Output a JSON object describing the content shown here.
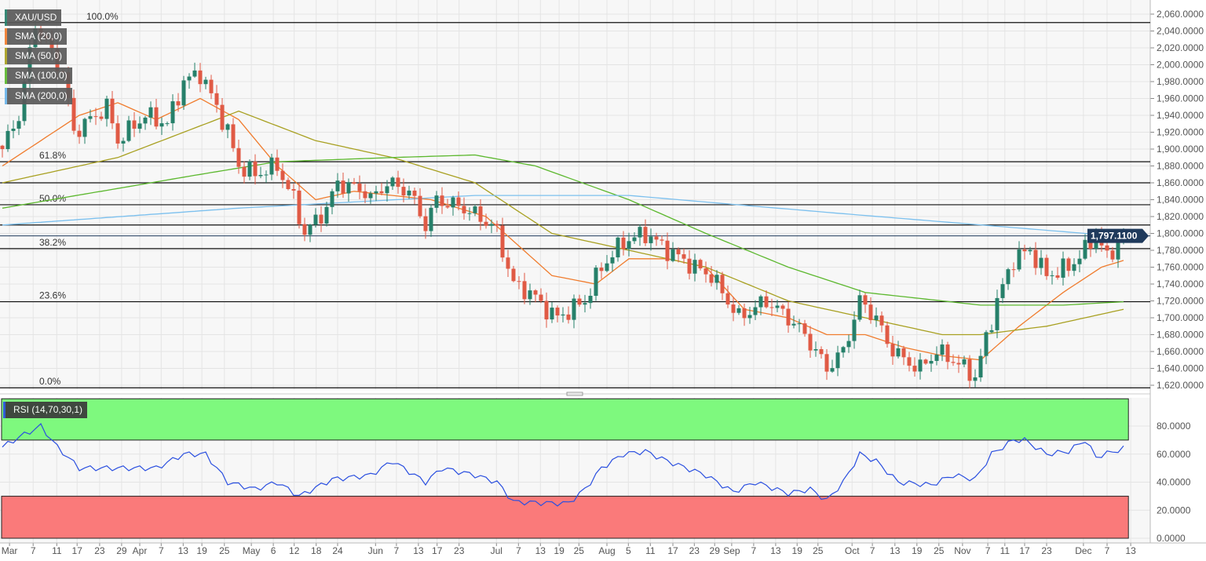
{
  "legend": [
    {
      "label": "XAU/USD",
      "color": "#26806a"
    },
    {
      "label": "SMA (20,0)",
      "color": "#f07c2e"
    },
    {
      "label": "SMA (50,0)",
      "color": "#a8a020"
    },
    {
      "label": "SMA (100,0)",
      "color": "#5cb82e"
    },
    {
      "label": "SMA (200,0)",
      "color": "#6ab4ea"
    }
  ],
  "rsi_label": "RSI (14,70,30,1)",
  "colors": {
    "up": "#26806a",
    "down": "#e05a45",
    "sma20": "#f07c2e",
    "sma50": "#a8a020",
    "sma100": "#5cb82e",
    "sma200": "#7cc0ee",
    "rsi": "#2a4fe0",
    "overbought": "#7ef97e",
    "oversold": "#fa7a7a",
    "price_badge": "#1f3a5c"
  },
  "chart_data": {
    "type": "candlestick",
    "symbol": "XAU/USD",
    "last_price": 1797.11,
    "last_price_label": "1,797.1100",
    "ylim": [
      1615,
      2070
    ],
    "yticks": [
      1620,
      1640,
      1660,
      1680,
      1700,
      1720,
      1740,
      1760,
      1780,
      1800,
      1820,
      1840,
      1860,
      1880,
      1900,
      1920,
      1940,
      1960,
      1980,
      2000,
      2020,
      2040,
      2060
    ],
    "ytick_labels": [
      "1,620.0000",
      "1,640.0000",
      "1,660.0000",
      "1,680.0000",
      "1,700.0000",
      "1,720.0000",
      "1,740.0000",
      "1,760.0000",
      "1,780.0000",
      "1,800.0000",
      "1,820.0000",
      "1,840.0000",
      "1,860.0000",
      "1,880.0000",
      "1,900.0000",
      "1,920.0000",
      "1,940.0000",
      "1,960.0000",
      "1,980.0000",
      "2,000.0000",
      "2,020.0000",
      "2,040.0000",
      "2,060.0000"
    ],
    "num_days": 205,
    "close_anchors": [
      [
        0,
        1900
      ],
      [
        3,
        1940
      ],
      [
        6,
        2050
      ],
      [
        11,
        1990
      ],
      [
        13,
        1920
      ],
      [
        19,
        1950
      ],
      [
        21,
        1910
      ],
      [
        26,
        1940
      ],
      [
        30,
        1930
      ],
      [
        33,
        1980
      ],
      [
        36,
        1990
      ],
      [
        39,
        1950
      ],
      [
        41,
        1920
      ],
      [
        43,
        1880
      ],
      [
        46,
        1870
      ],
      [
        50,
        1880
      ],
      [
        53,
        1840
      ],
      [
        55,
        1800
      ],
      [
        59,
        1830
      ],
      [
        61,
        1860
      ],
      [
        66,
        1850
      ],
      [
        67,
        1840
      ],
      [
        70,
        1860
      ],
      [
        74,
        1850
      ],
      [
        77,
        1810
      ],
      [
        79,
        1840
      ],
      [
        84,
        1830
      ],
      [
        89,
        1810
      ],
      [
        90,
        1800
      ],
      [
        93,
        1740
      ],
      [
        96,
        1730
      ],
      [
        99,
        1710
      ],
      [
        101,
        1700
      ],
      [
        106,
        1720
      ],
      [
        109,
        1760
      ],
      [
        113,
        1790
      ],
      [
        117,
        1800
      ],
      [
        121,
        1780
      ],
      [
        126,
        1760
      ],
      [
        129,
        1750
      ],
      [
        131,
        1730
      ],
      [
        134,
        1700
      ],
      [
        139,
        1720
      ],
      [
        143,
        1700
      ],
      [
        146,
        1680
      ],
      [
        150,
        1640
      ],
      [
        153,
        1660
      ],
      [
        156,
        1720
      ],
      [
        159,
        1700
      ],
      [
        161,
        1670
      ],
      [
        164,
        1650
      ],
      [
        167,
        1640
      ],
      [
        170,
        1660
      ],
      [
        173,
        1650
      ],
      [
        177,
        1630
      ],
      [
        181,
        1720
      ],
      [
        184,
        1770
      ],
      [
        187,
        1780
      ],
      [
        190,
        1750
      ],
      [
        194,
        1760
      ],
      [
        197,
        1780
      ],
      [
        199,
        1800
      ],
      [
        201,
        1770
      ],
      [
        203,
        1790
      ],
      [
        204,
        1797
      ]
    ],
    "sma": [
      {
        "name": "SMA (20,0)",
        "key": "sma20",
        "anchors": [
          [
            0,
            1880
          ],
          [
            14,
            1940
          ],
          [
            21,
            1955
          ],
          [
            28,
            1935
          ],
          [
            36,
            1960
          ],
          [
            43,
            1935
          ],
          [
            50,
            1880
          ],
          [
            57,
            1840
          ],
          [
            64,
            1850
          ],
          [
            78,
            1840
          ],
          [
            88,
            1820
          ],
          [
            100,
            1750
          ],
          [
            108,
            1740
          ],
          [
            114,
            1770
          ],
          [
            121,
            1770
          ],
          [
            128,
            1760
          ],
          [
            135,
            1710
          ],
          [
            143,
            1700
          ],
          [
            150,
            1680
          ],
          [
            157,
            1680
          ],
          [
            164,
            1665
          ],
          [
            171,
            1655
          ],
          [
            178,
            1650
          ],
          [
            185,
            1690
          ],
          [
            193,
            1730
          ],
          [
            200,
            1760
          ],
          [
            204,
            1768
          ]
        ]
      },
      {
        "name": "SMA (50,0)",
        "key": "sma50",
        "anchors": [
          [
            0,
            1860
          ],
          [
            21,
            1890
          ],
          [
            43,
            1945
          ],
          [
            57,
            1910
          ],
          [
            71,
            1890
          ],
          [
            86,
            1860
          ],
          [
            100,
            1800
          ],
          [
            114,
            1780
          ],
          [
            128,
            1760
          ],
          [
            143,
            1720
          ],
          [
            157,
            1700
          ],
          [
            171,
            1680
          ],
          [
            178,
            1680
          ],
          [
            190,
            1690
          ],
          [
            204,
            1710
          ]
        ]
      },
      {
        "name": "SMA (100,0)",
        "key": "sma100",
        "anchors": [
          [
            0,
            1830
          ],
          [
            36,
            1870
          ],
          [
            50,
            1885
          ],
          [
            71,
            1890
          ],
          [
            86,
            1893
          ],
          [
            97,
            1880
          ],
          [
            114,
            1840
          ],
          [
            128,
            1800
          ],
          [
            143,
            1760
          ],
          [
            157,
            1730
          ],
          [
            178,
            1715
          ],
          [
            193,
            1715
          ],
          [
            204,
            1719
          ]
        ]
      },
      {
        "name": "SMA (200,0)",
        "key": "sma200",
        "anchors": [
          [
            0,
            1810
          ],
          [
            43,
            1830
          ],
          [
            86,
            1845
          ],
          [
            114,
            1845
          ],
          [
            150,
            1825
          ],
          [
            197,
            1800
          ],
          [
            204,
            1795
          ]
        ]
      }
    ],
    "fib_levels": [
      {
        "label": "100.0%",
        "price": 2050
      },
      {
        "label": "61.8%",
        "price": 1885
      },
      {
        "label": "50.0%",
        "price": 1834
      },
      {
        "label": "38.2%",
        "price": 1782
      },
      {
        "label": "23.6%",
        "price": 1719
      },
      {
        "label": "0.0%",
        "price": 1617
      }
    ],
    "extra_levels": [
      1860,
      1810
    ],
    "rsi": {
      "params": "14,70,30,1",
      "overbought": 70,
      "oversold": 30,
      "ylim": [
        0,
        100
      ],
      "yticks": [
        0,
        20,
        40,
        60,
        80
      ],
      "ytick_labels": [
        "0.0000",
        "20.0000",
        "40.0000",
        "60.0000",
        "80.0000"
      ],
      "anchors": [
        [
          0,
          65
        ],
        [
          3,
          72
        ],
        [
          7,
          80
        ],
        [
          10,
          65
        ],
        [
          14,
          50
        ],
        [
          21,
          50
        ],
        [
          28,
          50
        ],
        [
          33,
          60
        ],
        [
          37,
          60
        ],
        [
          41,
          40
        ],
        [
          46,
          35
        ],
        [
          50,
          40
        ],
        [
          54,
          30
        ],
        [
          60,
          42
        ],
        [
          67,
          45
        ],
        [
          71,
          55
        ],
        [
          77,
          40
        ],
        [
          80,
          50
        ],
        [
          86,
          45
        ],
        [
          90,
          40
        ],
        [
          93,
          26
        ],
        [
          100,
          25
        ],
        [
          103,
          25
        ],
        [
          106,
          35
        ],
        [
          109,
          50
        ],
        [
          113,
          60
        ],
        [
          117,
          62
        ],
        [
          121,
          55
        ],
        [
          128,
          45
        ],
        [
          133,
          33
        ],
        [
          137,
          40
        ],
        [
          143,
          32
        ],
        [
          147,
          35
        ],
        [
          150,
          27
        ],
        [
          153,
          40
        ],
        [
          156,
          60
        ],
        [
          159,
          55
        ],
        [
          163,
          40
        ],
        [
          169,
          38
        ],
        [
          173,
          45
        ],
        [
          177,
          42
        ],
        [
          180,
          60
        ],
        [
          184,
          70
        ],
        [
          186,
          70
        ],
        [
          190,
          60
        ],
        [
          194,
          62
        ],
        [
          197,
          70
        ],
        [
          199,
          58
        ],
        [
          204,
          64
        ]
      ]
    },
    "xticks": [
      [
        "Mar",
        1.3
      ],
      [
        "7",
        5.6
      ],
      [
        "11",
        9.9
      ],
      [
        "17",
        13.6
      ],
      [
        "23",
        17.7
      ],
      [
        "29",
        21.7
      ],
      [
        "Apr",
        25
      ],
      [
        "7",
        28.9
      ],
      [
        "13",
        32.9
      ],
      [
        "19",
        36.3
      ],
      [
        "25",
        40.4
      ],
      [
        "May",
        45.3
      ],
      [
        "6",
        49.3
      ],
      [
        "12",
        53.1
      ],
      [
        "18",
        57.1
      ],
      [
        "24",
        61
      ],
      [
        "Jun",
        67.9
      ],
      [
        "7",
        71.7
      ],
      [
        "13",
        75.7
      ],
      [
        "17",
        79.1
      ],
      [
        "23",
        83.1
      ],
      [
        "Jul",
        89.9
      ],
      [
        "7",
        93.9
      ],
      [
        "13",
        97.9
      ],
      [
        "19",
        101.3
      ],
      [
        "25",
        104.9
      ],
      [
        "Aug",
        110
      ],
      [
        "5",
        113.9
      ],
      [
        "11",
        117.9
      ],
      [
        "17",
        122
      ],
      [
        "23",
        125.9
      ],
      [
        "29",
        129.6
      ],
      [
        "Sep",
        132.7
      ],
      [
        "7",
        136.7
      ],
      [
        "13",
        140.7
      ],
      [
        "19",
        144.6
      ],
      [
        "25",
        148.4
      ],
      [
        "Oct",
        154.6
      ],
      [
        "7",
        158.3
      ],
      [
        "13",
        162.4
      ],
      [
        "19",
        166.4
      ],
      [
        "25",
        170.4
      ],
      [
        "Nov",
        174.7
      ],
      [
        "7",
        179.3
      ],
      [
        "11",
        182.4
      ],
      [
        "17",
        186
      ],
      [
        "23",
        190
      ],
      [
        "Dec",
        196.7
      ],
      [
        "7",
        201
      ],
      [
        "13",
        205.3
      ]
    ]
  }
}
